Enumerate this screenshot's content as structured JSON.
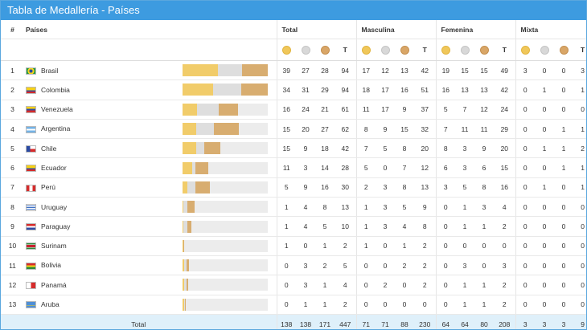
{
  "title": "Tabla de Medallería - Países",
  "headers": {
    "index": "#",
    "country": "Países",
    "total": "Total",
    "masculina": "Masculina",
    "femenina": "Femenina",
    "mixta": "Mixta",
    "t": "T"
  },
  "icons": {
    "gold": "gold-medal-icon",
    "silver": "silver-medal-icon",
    "bronze": "bronze-medal-icon"
  },
  "colors": {
    "title_bar": "#3d9be0",
    "gold": "#f1cc6a",
    "silver": "#dedede",
    "bronze": "#d8ad70",
    "total_row": "#dff0fa"
  },
  "rows": [
    {
      "rank": "1",
      "country": "Brasil",
      "flag": "brazil-flag-icon",
      "total": [
        "39",
        "27",
        "28",
        "94"
      ],
      "masculina": [
        "17",
        "12",
        "13",
        "42"
      ],
      "femenina": [
        "19",
        "15",
        "15",
        "49"
      ],
      "mixta": [
        "3",
        "0",
        "0",
        "3"
      ]
    },
    {
      "rank": "2",
      "country": "Colombia",
      "flag": "colombia-flag-icon",
      "total": [
        "34",
        "31",
        "29",
        "94"
      ],
      "masculina": [
        "18",
        "17",
        "16",
        "51"
      ],
      "femenina": [
        "16",
        "13",
        "13",
        "42"
      ],
      "mixta": [
        "0",
        "1",
        "0",
        "1"
      ]
    },
    {
      "rank": "3",
      "country": "Venezuela",
      "flag": "venezuela-flag-icon",
      "total": [
        "16",
        "24",
        "21",
        "61"
      ],
      "masculina": [
        "11",
        "17",
        "9",
        "37"
      ],
      "femenina": [
        "5",
        "7",
        "12",
        "24"
      ],
      "mixta": [
        "0",
        "0",
        "0",
        "0"
      ]
    },
    {
      "rank": "4",
      "country": "Argentina",
      "flag": "argentina-flag-icon",
      "total": [
        "15",
        "20",
        "27",
        "62"
      ],
      "masculina": [
        "8",
        "9",
        "15",
        "32"
      ],
      "femenina": [
        "7",
        "11",
        "11",
        "29"
      ],
      "mixta": [
        "0",
        "0",
        "1",
        "1"
      ]
    },
    {
      "rank": "5",
      "country": "Chile",
      "flag": "chile-flag-icon",
      "total": [
        "15",
        "9",
        "18",
        "42"
      ],
      "masculina": [
        "7",
        "5",
        "8",
        "20"
      ],
      "femenina": [
        "8",
        "3",
        "9",
        "20"
      ],
      "mixta": [
        "0",
        "1",
        "1",
        "2"
      ]
    },
    {
      "rank": "6",
      "country": "Ecuador",
      "flag": "ecuador-flag-icon",
      "total": [
        "11",
        "3",
        "14",
        "28"
      ],
      "masculina": [
        "5",
        "0",
        "7",
        "12"
      ],
      "femenina": [
        "6",
        "3",
        "6",
        "15"
      ],
      "mixta": [
        "0",
        "0",
        "1",
        "1"
      ]
    },
    {
      "rank": "7",
      "country": "Perú",
      "flag": "peru-flag-icon",
      "total": [
        "5",
        "9",
        "16",
        "30"
      ],
      "masculina": [
        "2",
        "3",
        "8",
        "13"
      ],
      "femenina": [
        "3",
        "5",
        "8",
        "16"
      ],
      "mixta": [
        "0",
        "1",
        "0",
        "1"
      ]
    },
    {
      "rank": "8",
      "country": "Uruguay",
      "flag": "uruguay-flag-icon",
      "total": [
        "1",
        "4",
        "8",
        "13"
      ],
      "masculina": [
        "1",
        "3",
        "5",
        "9"
      ],
      "femenina": [
        "0",
        "1",
        "3",
        "4"
      ],
      "mixta": [
        "0",
        "0",
        "0",
        "0"
      ]
    },
    {
      "rank": "9",
      "country": "Paraguay",
      "flag": "paraguay-flag-icon",
      "total": [
        "1",
        "4",
        "5",
        "10"
      ],
      "masculina": [
        "1",
        "3",
        "4",
        "8"
      ],
      "femenina": [
        "0",
        "1",
        "1",
        "2"
      ],
      "mixta": [
        "0",
        "0",
        "0",
        "0"
      ]
    },
    {
      "rank": "10",
      "country": "Surinam",
      "flag": "suriname-flag-icon",
      "total": [
        "1",
        "0",
        "1",
        "2"
      ],
      "masculina": [
        "1",
        "0",
        "1",
        "2"
      ],
      "femenina": [
        "0",
        "0",
        "0",
        "0"
      ],
      "mixta": [
        "0",
        "0",
        "0",
        "0"
      ]
    },
    {
      "rank": "11",
      "country": "Bolivia",
      "flag": "bolivia-flag-icon",
      "total": [
        "0",
        "3",
        "2",
        "5"
      ],
      "masculina": [
        "0",
        "0",
        "2",
        "2"
      ],
      "femenina": [
        "0",
        "3",
        "0",
        "3"
      ],
      "mixta": [
        "0",
        "0",
        "0",
        "0"
      ]
    },
    {
      "rank": "12",
      "country": "Panamá",
      "flag": "panama-flag-icon",
      "total": [
        "0",
        "3",
        "1",
        "4"
      ],
      "masculina": [
        "0",
        "2",
        "0",
        "2"
      ],
      "femenina": [
        "0",
        "1",
        "1",
        "2"
      ],
      "mixta": [
        "0",
        "0",
        "0",
        "0"
      ]
    },
    {
      "rank": "13",
      "country": "Aruba",
      "flag": "aruba-flag-icon",
      "total": [
        "0",
        "1",
        "1",
        "2"
      ],
      "masculina": [
        "0",
        "0",
        "0",
        "0"
      ],
      "femenina": [
        "0",
        "1",
        "1",
        "2"
      ],
      "mixta": [
        "0",
        "0",
        "0",
        "0"
      ]
    }
  ],
  "totals": {
    "label": "Total",
    "total": [
      "138",
      "138",
      "171",
      "447"
    ],
    "masculina": [
      "71",
      "71",
      "88",
      "230"
    ],
    "femenina": [
      "64",
      "64",
      "80",
      "208"
    ],
    "mixta": [
      "3",
      "3",
      "3",
      "9"
    ]
  },
  "bar_scale_max": 94
}
